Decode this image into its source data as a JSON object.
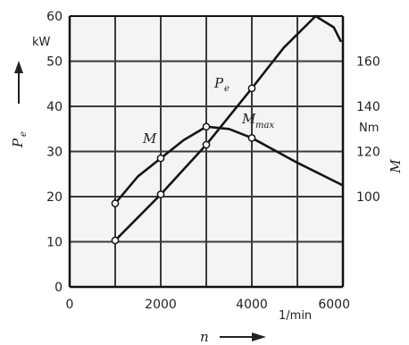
{
  "chart_data": {
    "type": "line",
    "x_axis": {
      "symbol": "n",
      "unit": "1/min",
      "range": [
        0,
        6000
      ],
      "ticks": [
        0,
        2000,
        4000,
        6000
      ],
      "tick_labels": [
        "0",
        "2000",
        "4000",
        "6000"
      ],
      "grid_step": 1000
    },
    "y_left": {
      "symbol": "P",
      "symbol_sub": "e",
      "unit": "kW",
      "range": [
        0,
        60
      ],
      "ticks": [
        0,
        10,
        20,
        30,
        40,
        50,
        60
      ],
      "tick_labels": [
        "0",
        "10",
        "20",
        "30",
        "40",
        "50",
        "60"
      ]
    },
    "y_right": {
      "symbol": "M",
      "unit": "Nm",
      "ticks": [
        100,
        120,
        140,
        160
      ],
      "tick_labels": [
        "100",
        "120",
        "140",
        "160"
      ],
      "value_at_left_0": 60,
      "value_at_left_60": 180
    },
    "series": [
      {
        "name": "P",
        "name_sub": "e",
        "axis": "left",
        "points": [
          {
            "x": 1000,
            "y": 10.3
          },
          {
            "x": 2000,
            "y": 20.5
          },
          {
            "x": 3000,
            "y": 31.5
          },
          {
            "x": 4000,
            "y": 44
          },
          {
            "x": 4700,
            "y": 53
          },
          {
            "x": 5400,
            "y": 60
          },
          {
            "x": 5800,
            "y": 57.5
          },
          {
            "x": 5950,
            "y": 54.5
          }
        ]
      },
      {
        "name": "M",
        "axis": "right",
        "points": [
          {
            "x": 1000,
            "y": 97
          },
          {
            "x": 1500,
            "y": 109
          },
          {
            "x": 2000,
            "y": 117
          },
          {
            "x": 2500,
            "y": 125
          },
          {
            "x": 3000,
            "y": 131
          },
          {
            "x": 3500,
            "y": 130
          },
          {
            "x": 4000,
            "y": 126
          },
          {
            "x": 5000,
            "y": 115
          },
          {
            "x": 6000,
            "y": 105
          }
        ]
      }
    ],
    "annotation": {
      "text": "M",
      "sub": "max",
      "x": 3200,
      "axis": "right"
    }
  }
}
